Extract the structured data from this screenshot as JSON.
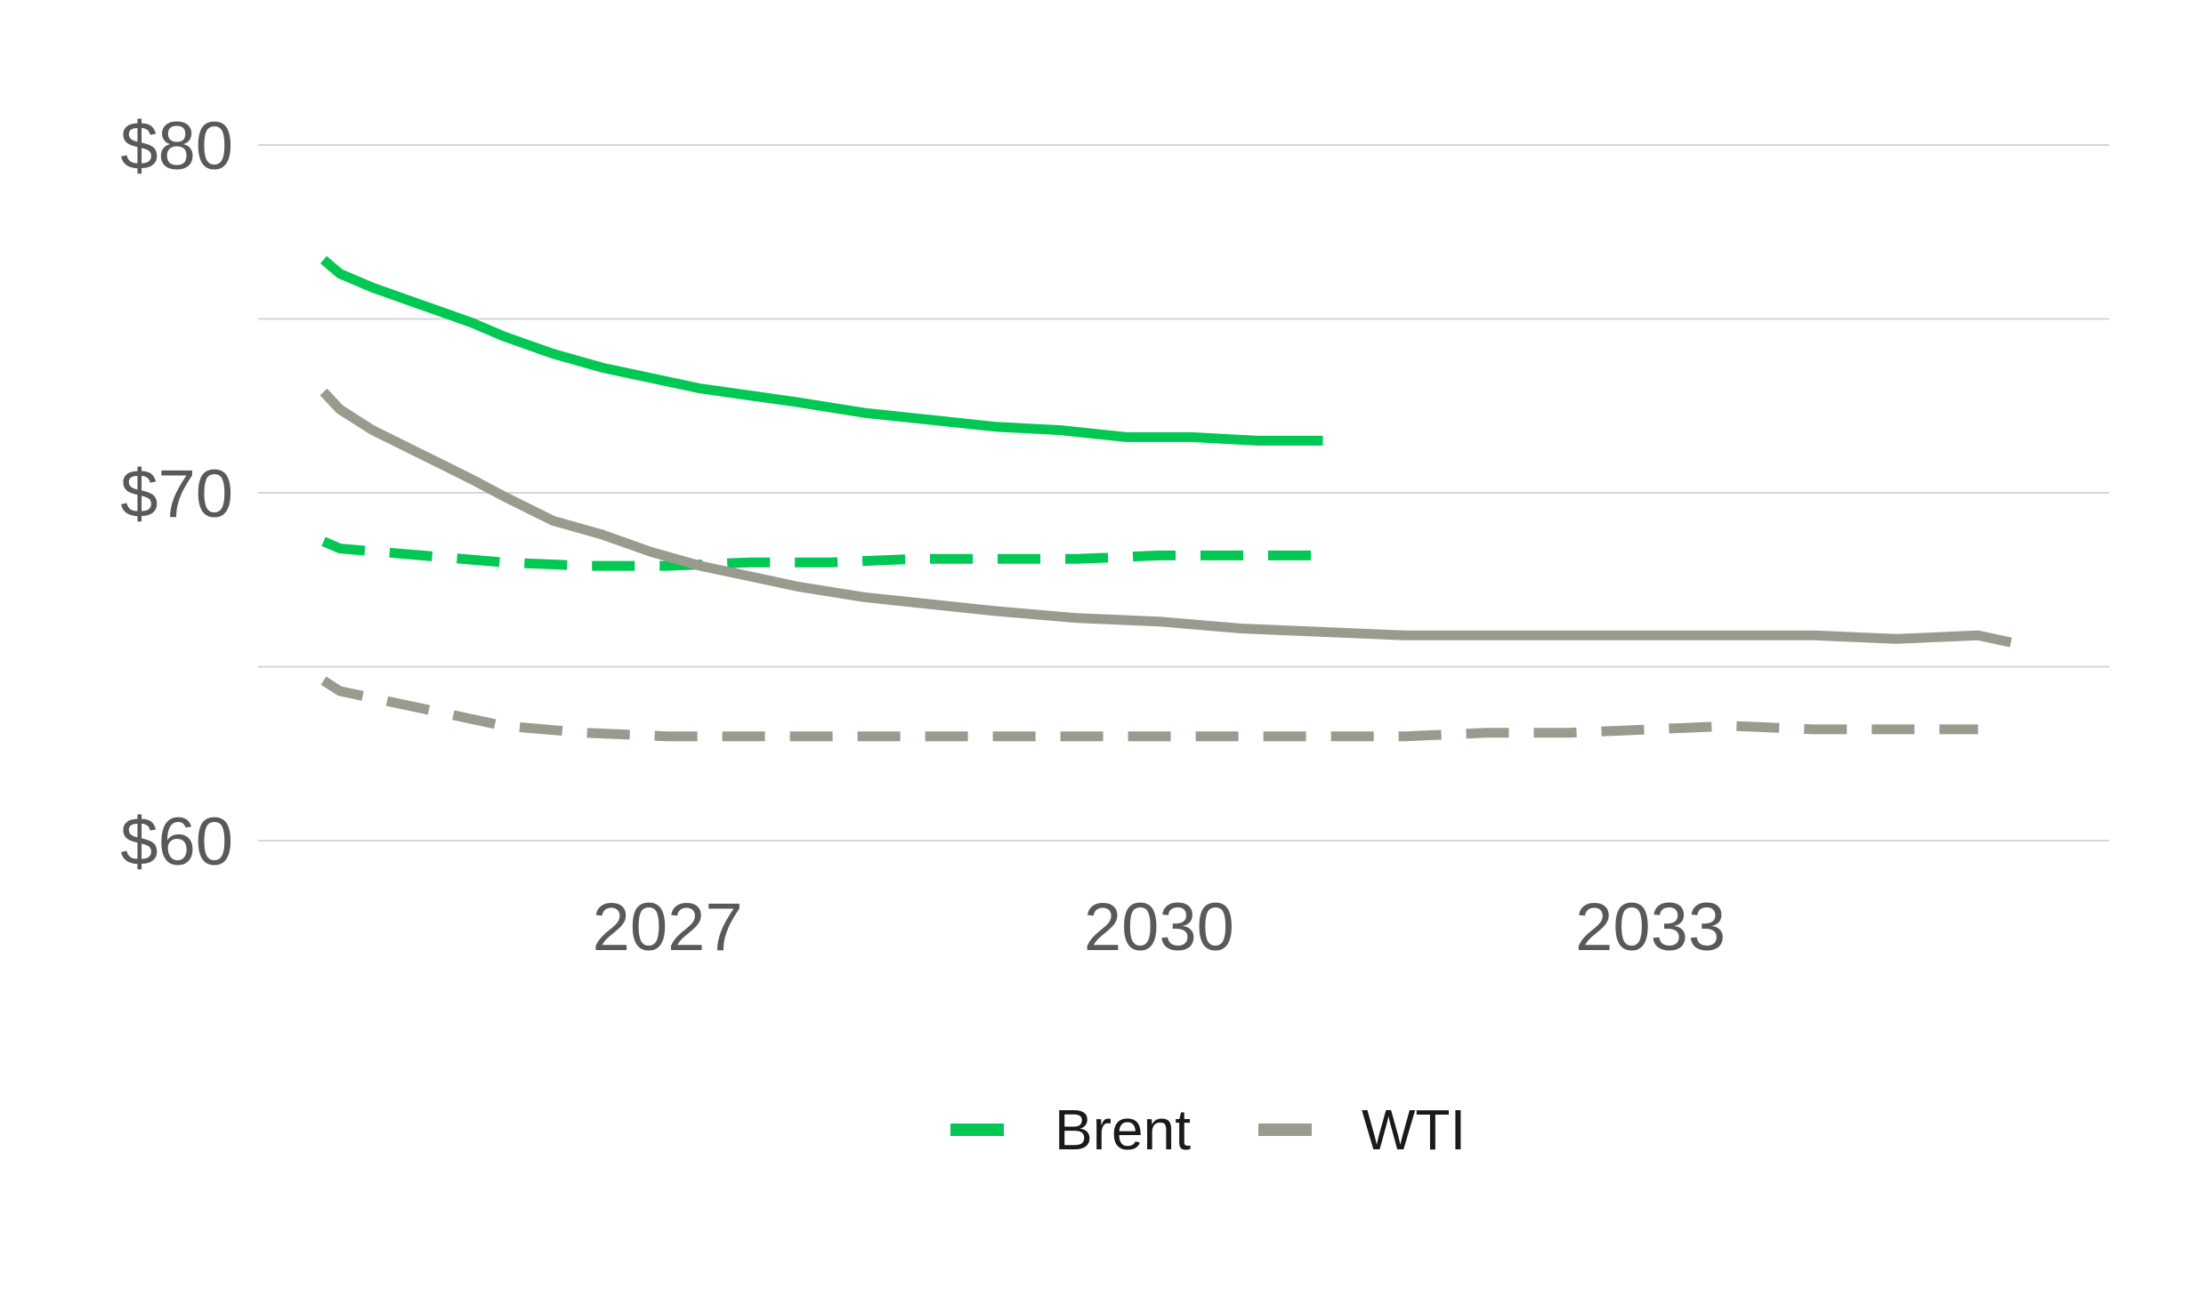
{
  "chart_data": {
    "type": "line",
    "title": "",
    "xlabel": "",
    "ylabel": "",
    "xlim": [
      2024.5,
      2035.8
    ],
    "ylim": [
      60,
      80
    ],
    "yticks": [
      60,
      65,
      70,
      75,
      80
    ],
    "ytick_labels": [
      "$60",
      "",
      "$70",
      "",
      "$80"
    ],
    "xticks": [
      2027,
      2030,
      2033
    ],
    "xtick_labels": [
      "2027",
      "2030",
      "2033"
    ],
    "grid": true,
    "legend_position": "bottom-center",
    "legend": [
      {
        "name": "Brent",
        "color": "#00c853"
      },
      {
        "name": "WTI",
        "color": "#9a9b8f"
      }
    ],
    "series": [
      {
        "group": "Brent",
        "style": "solid",
        "color": "#00c853",
        "x": [
          2024.9,
          2025.0,
          2025.2,
          2025.5,
          2025.8,
          2026.0,
          2026.3,
          2026.6,
          2026.9,
          2027.2,
          2027.5,
          2027.8,
          2028.2,
          2028.6,
          2029.0,
          2029.4,
          2029.8,
          2030.2,
          2030.6,
          2031.0
        ],
        "values": [
          76.7,
          76.3,
          75.9,
          75.4,
          74.9,
          74.5,
          74.0,
          73.6,
          73.3,
          73.0,
          72.8,
          72.6,
          72.3,
          72.1,
          71.9,
          71.8,
          71.6,
          71.6,
          71.5,
          71.5
        ]
      },
      {
        "group": "Brent",
        "style": "dashed",
        "color": "#00c853",
        "x": [
          2024.9,
          2025.0,
          2025.5,
          2026.0,
          2026.5,
          2027.0,
          2027.5,
          2028.0,
          2028.5,
          2029.0,
          2029.5,
          2030.0,
          2030.5,
          2031.0
        ],
        "values": [
          68.6,
          68.4,
          68.2,
          68.0,
          67.9,
          67.9,
          68.0,
          68.0,
          68.1,
          68.1,
          68.1,
          68.2,
          68.2,
          68.2
        ]
      },
      {
        "group": "WTI",
        "style": "solid",
        "color": "#9a9b8f",
        "x": [
          2024.9,
          2025.0,
          2025.2,
          2025.5,
          2025.8,
          2026.0,
          2026.3,
          2026.6,
          2026.9,
          2027.2,
          2027.5,
          2027.8,
          2028.2,
          2028.6,
          2029.0,
          2029.5,
          2030.0,
          2030.5,
          2031.0,
          2031.5,
          2032.0,
          2032.5,
          2033.0,
          2033.5,
          2034.0,
          2034.5,
          2035.0,
          2035.2
        ],
        "values": [
          72.9,
          72.4,
          71.8,
          71.1,
          70.4,
          69.9,
          69.2,
          68.8,
          68.3,
          67.9,
          67.6,
          67.3,
          67.0,
          66.8,
          66.6,
          66.4,
          66.3,
          66.1,
          66.0,
          65.9,
          65.9,
          65.9,
          65.9,
          65.9,
          65.9,
          65.8,
          65.9,
          65.7
        ]
      },
      {
        "group": "WTI",
        "style": "dashed",
        "color": "#9a9b8f",
        "x": [
          2024.9,
          2025.0,
          2025.5,
          2026.0,
          2026.5,
          2027.0,
          2027.5,
          2028.0,
          2028.5,
          2029.0,
          2029.5,
          2030.0,
          2030.5,
          2031.0,
          2031.5,
          2032.0,
          2032.5,
          2033.0,
          2033.5,
          2034.0,
          2034.5,
          2035.0
        ],
        "values": [
          64.6,
          64.3,
          63.8,
          63.3,
          63.1,
          63.0,
          63.0,
          63.0,
          63.0,
          63.0,
          63.0,
          63.0,
          63.0,
          63.0,
          63.0,
          63.1,
          63.1,
          63.2,
          63.3,
          63.2,
          63.2,
          63.2
        ]
      }
    ]
  }
}
